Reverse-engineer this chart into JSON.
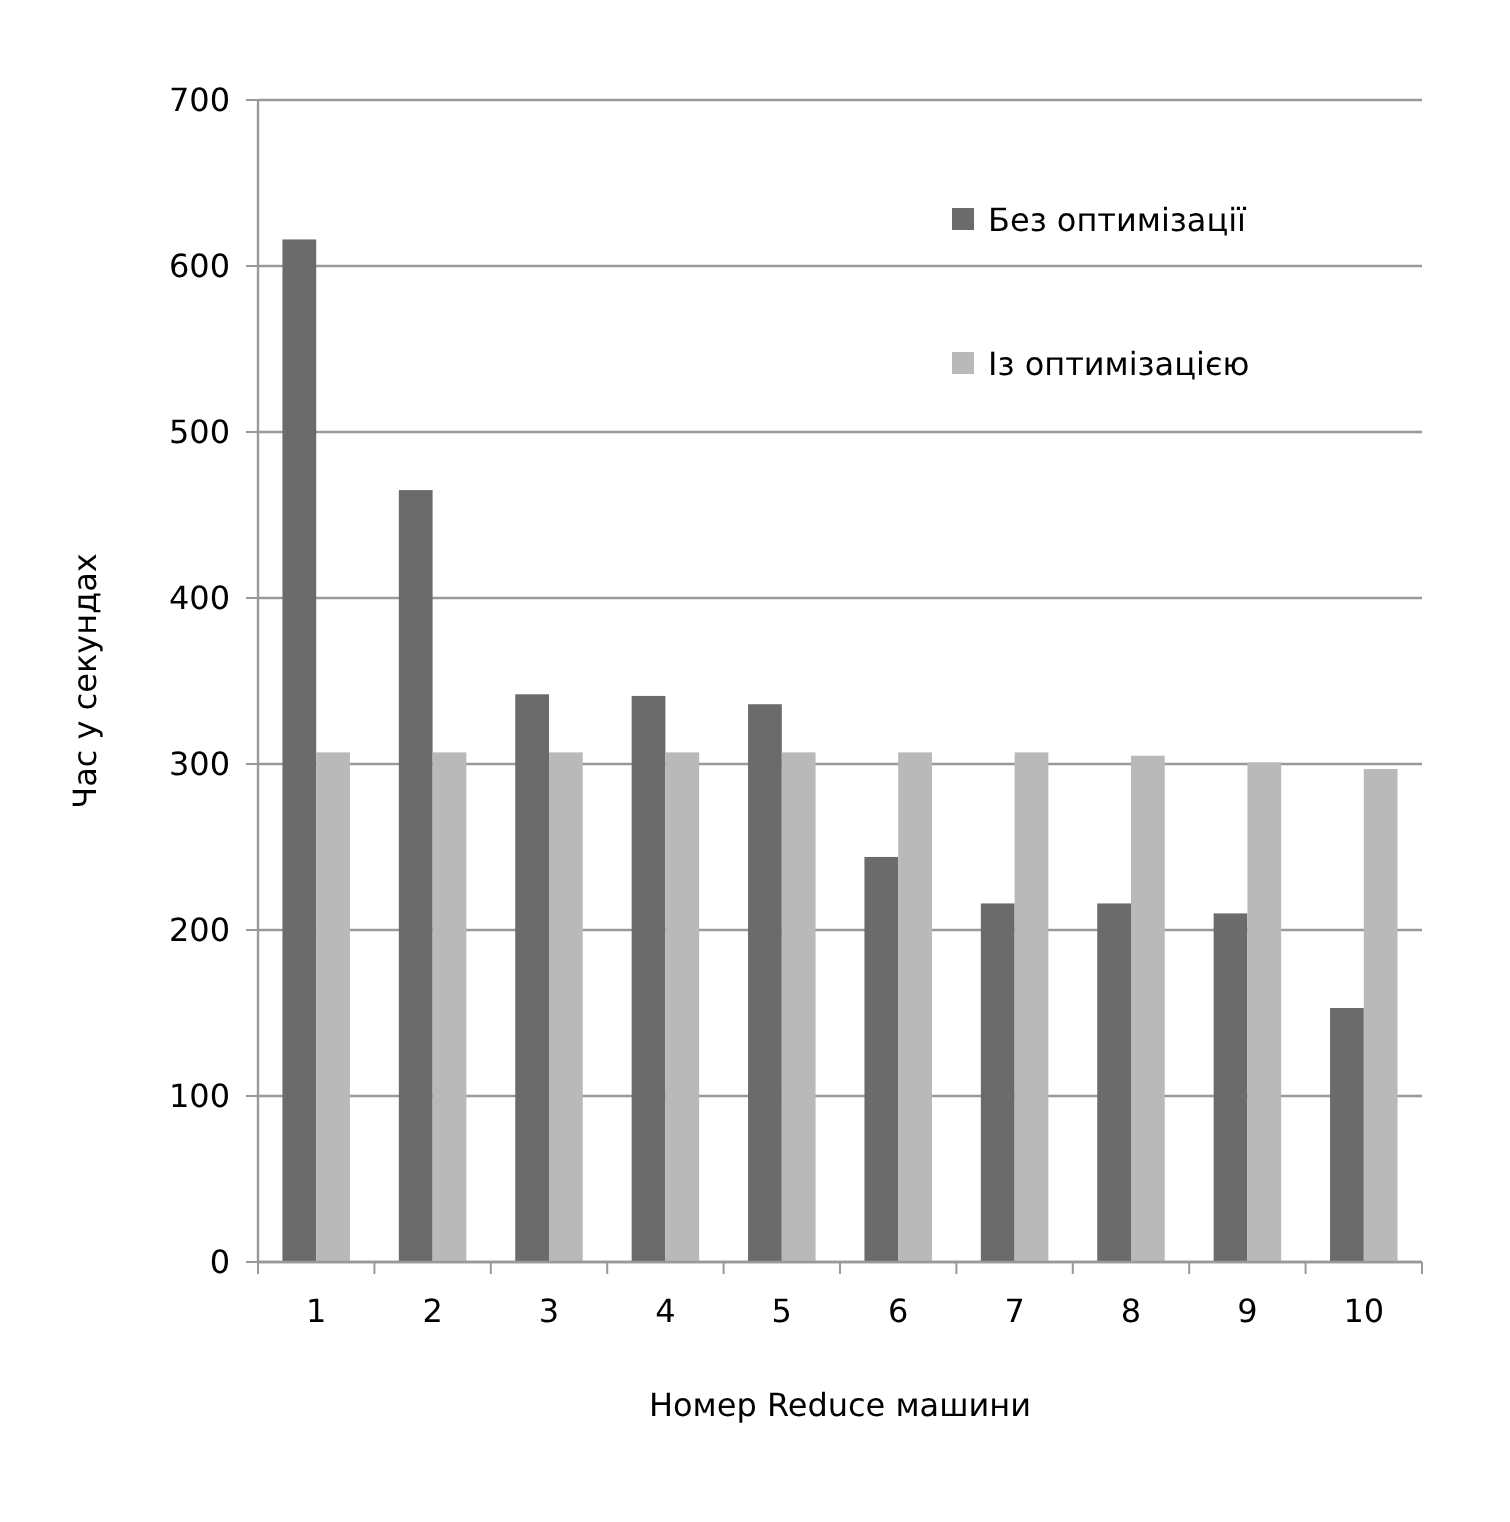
{
  "chart_data": {
    "type": "bar",
    "xlabel": "Номер Reduce машини",
    "ylabel": "Час у секундах",
    "categories": [
      "1",
      "2",
      "3",
      "4",
      "5",
      "6",
      "7",
      "8",
      "9",
      "10"
    ],
    "series": [
      {
        "name": "Без оптимізації",
        "color": "#6b6b6b",
        "values": [
          616,
          465,
          342,
          341,
          336,
          244,
          216,
          216,
          210,
          153
        ]
      },
      {
        "name": "Із оптимізацією",
        "color": "#b9b9b9",
        "values": [
          307,
          307,
          307,
          307,
          307,
          307,
          307,
          305,
          301,
          297
        ]
      }
    ],
    "ylim": [
      0,
      700
    ],
    "yticks": [
      0,
      100,
      200,
      300,
      400,
      500,
      600,
      700
    ],
    "grid": "y",
    "legend": "top right"
  }
}
